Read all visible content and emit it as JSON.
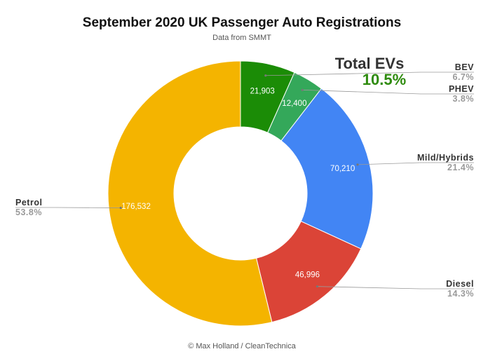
{
  "chart_data": {
    "type": "pie",
    "title": "September 2020 UK Passenger Auto Registrations",
    "subtitle": "Data from SMMT",
    "credit": "© Max Holland / CleanTechnica",
    "categories": [
      "BEV",
      "PHEV",
      "Mild/Hybrids",
      "Diesel",
      "Petrol"
    ],
    "values": [
      21903,
      12400,
      70210,
      46996,
      176532
    ],
    "value_labels": [
      "21,903",
      "12,400",
      "70,210",
      "46,996",
      "176,532"
    ],
    "percent_labels": [
      "6.7%",
      "3.8%",
      "21.4%",
      "14.3%",
      "53.8%"
    ],
    "colors": [
      "#1b8c06",
      "#34a85a",
      "#4285f4",
      "#db4437",
      "#f4b400"
    ],
    "donut": true,
    "annotation": {
      "label": "Total EVs",
      "value": "10.5%",
      "color": "#2e8b0e"
    }
  }
}
